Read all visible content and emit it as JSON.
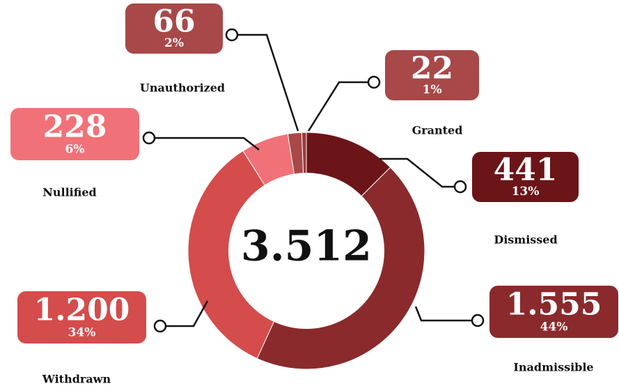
{
  "chart_data": {
    "type": "donut",
    "total_label": "3.512",
    "categories": [
      "Dismissed",
      "Inadmissible",
      "Withdrawn",
      "Nullified",
      "Unauthorized",
      "Granted"
    ],
    "values": [
      441,
      1555,
      1200,
      228,
      66,
      22
    ],
    "value_labels": [
      "441",
      "1.555",
      "1.200",
      "228",
      "66",
      "22"
    ],
    "percents": [
      {
        "value": 13,
        "label": "13%"
      },
      {
        "value": 44,
        "label": "44%"
      },
      {
        "value": 34,
        "label": "34%"
      },
      {
        "value": 6,
        "label": "6%"
      },
      {
        "value": 2,
        "label": "2%"
      },
      {
        "value": 1,
        "label": "1%"
      }
    ],
    "colors": [
      "#6b1519",
      "#8a2a2c",
      "#d44c4c",
      "#f07278",
      "#a84848",
      "#9e3a3a"
    ]
  }
}
